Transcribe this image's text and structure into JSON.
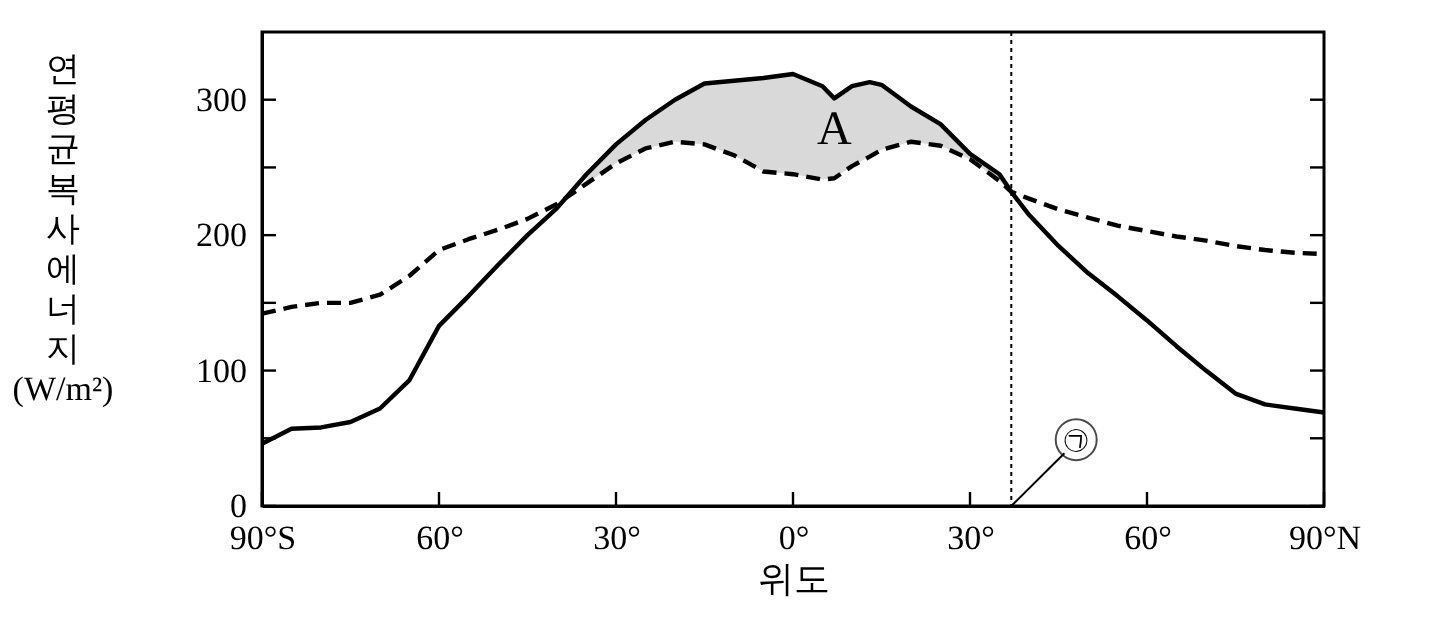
{
  "chart_data": {
    "type": "line",
    "xlabel": "위도",
    "ylabel": "연평균 복사 에너지 (W/m²)",
    "x": [
      -90,
      -85,
      -80,
      -75,
      -70,
      -65,
      -60,
      -55,
      -50,
      -45,
      -40,
      -35,
      -30,
      -25,
      -20,
      -15,
      -10,
      -5,
      0,
      5,
      7,
      10,
      13,
      15,
      20,
      25,
      30,
      35,
      37,
      40,
      45,
      50,
      55,
      60,
      65,
      70,
      75,
      80,
      85,
      90
    ],
    "series": [
      {
        "color": "#000000",
        "line_style": "solid",
        "values": [
          46,
          57,
          58,
          62,
          72,
          93,
          133,
          155,
          178,
          200,
          220,
          245,
          267,
          285,
          300,
          312,
          314,
          316,
          319,
          310,
          301,
          310,
          313,
          311,
          295,
          282,
          260,
          245,
          232,
          215,
          192,
          172,
          155,
          137,
          118,
          100,
          83,
          75,
          72,
          69
        ],
        "upper": [
          null,
          null,
          null,
          null,
          null,
          null,
          null,
          null,
          null,
          null,
          null,
          245,
          267,
          285,
          300,
          312,
          314,
          316,
          319,
          310,
          301,
          310,
          313,
          311,
          295,
          282,
          260,
          245,
          232,
          null,
          null,
          null,
          null,
          null,
          null,
          null,
          null,
          null,
          null,
          null
        ],
        "lower": [
          null,
          null,
          null,
          null,
          null,
          null,
          null,
          null,
          null,
          null,
          null,
          238,
          253,
          264,
          269,
          267,
          259,
          247,
          245,
          241,
          242,
          251,
          258,
          263,
          269,
          266,
          256,
          240,
          232,
          null,
          null,
          null,
          null,
          null,
          null,
          null,
          null,
          null,
          null,
          null
        ]
      },
      {
        "color": "#000000",
        "line_style": "dashed",
        "values": [
          142,
          147,
          150,
          150,
          156,
          170,
          189,
          197,
          204,
          212,
          223,
          238,
          253,
          264,
          269,
          267,
          259,
          247,
          245,
          241,
          242,
          251,
          258,
          263,
          269,
          266,
          256,
          240,
          232,
          227,
          219,
          213,
          207,
          203,
          199,
          196,
          192,
          189,
          187,
          186
        ]
      }
    ],
    "xlim": [
      -90,
      90
    ],
    "ylim": [
      0,
      350
    ],
    "xticks": [
      {
        "value": -90,
        "label": "90°S"
      },
      {
        "value": -60,
        "label": "60°"
      },
      {
        "value": -30,
        "label": "30°"
      },
      {
        "value": 0,
        "label": "0°"
      },
      {
        "value": 30,
        "label": "30°"
      },
      {
        "value": 60,
        "label": "60°"
      },
      {
        "value": 90,
        "label": "90°N"
      }
    ],
    "yticks": [
      0,
      {
        "value": 50,
        "label": null
      },
      100,
      {
        "value": 150,
        "label": null
      },
      200,
      {
        "value": 250,
        "label": null
      },
      300
    ],
    "ref_lines": [
      {
        "axis": "x",
        "value": 37,
        "label": "㉠",
        "line_style": "dotted",
        "color": "#000000"
      }
    ],
    "annotations": [
      "A"
    ],
    "grid": false,
    "marker": "none"
  }
}
